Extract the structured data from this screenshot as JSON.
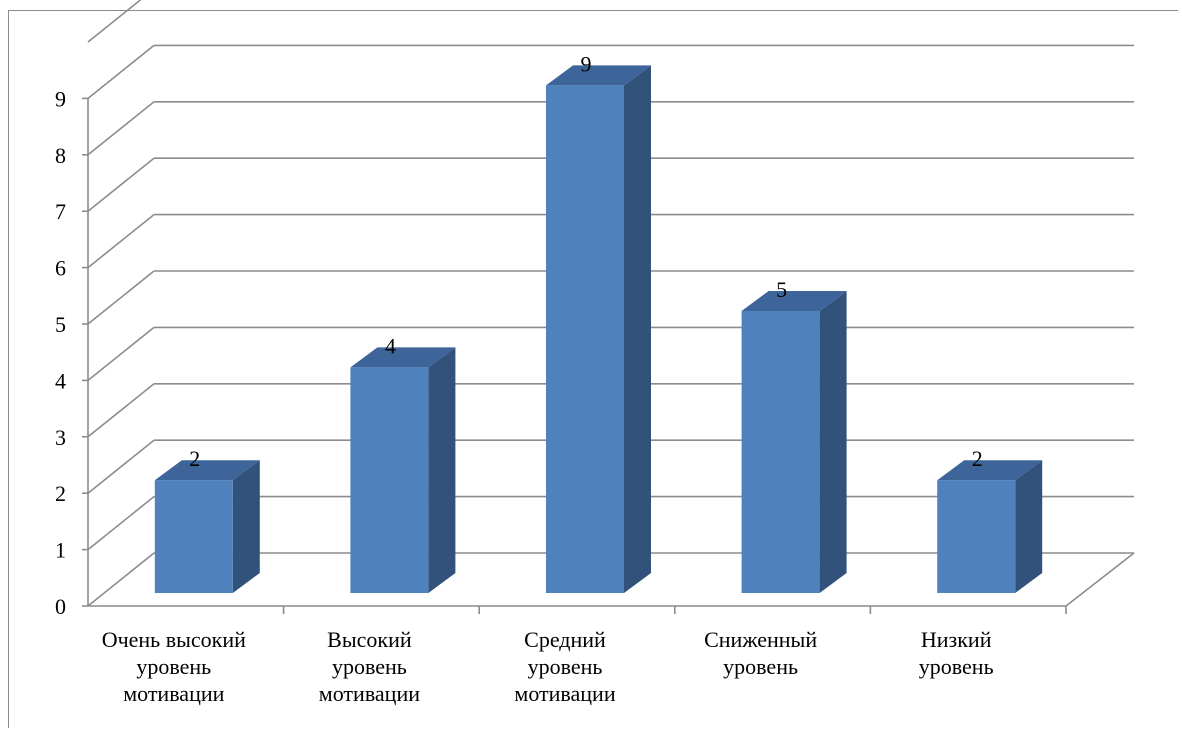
{
  "chart_data": {
    "type": "bar",
    "categories": [
      [
        "Очень высокий",
        "уровень",
        "мотивации"
      ],
      [
        "Высокий",
        "уровень",
        "мотивации"
      ],
      [
        "Средний",
        "уровень",
        "мотивации"
      ],
      [
        "Сниженный",
        "уровень"
      ],
      [
        "Низкий",
        "уровень"
      ]
    ],
    "values": [
      2,
      4,
      9,
      5,
      2
    ],
    "data_labels": [
      "2",
      "4",
      "9",
      "5",
      "2"
    ],
    "ylim": [
      0,
      9
    ],
    "yticks": [
      "0",
      "1",
      "2",
      "3",
      "4",
      "5",
      "6",
      "7",
      "8",
      "9"
    ],
    "grid": true,
    "legend": "none",
    "three_d": true,
    "colors": {
      "bar_front": "#4f81bd",
      "bar_side": "#32527c",
      "bar_top": "#3d659a",
      "grid": "#8c8c8c"
    }
  }
}
